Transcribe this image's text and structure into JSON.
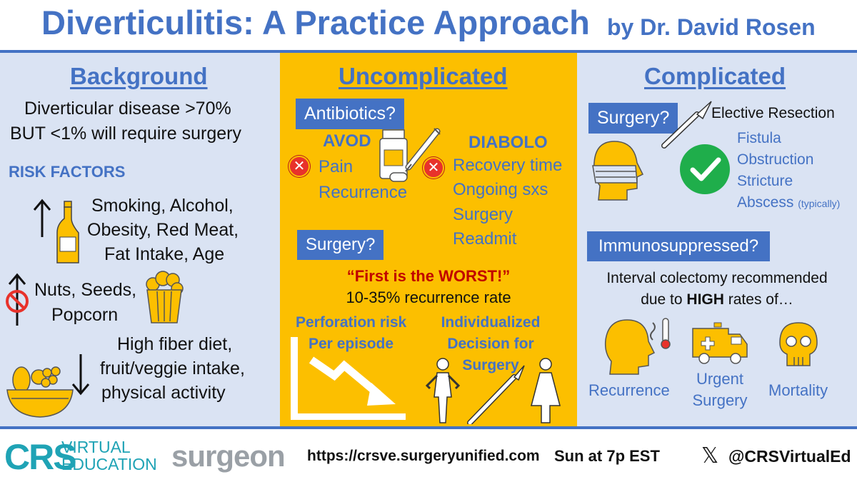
{
  "header": {
    "title": "Diverticulitis: A Practice Approach",
    "byline": "by Dr. David Rosen"
  },
  "background": {
    "heading": "Background",
    "stat_line1": "Diverticular disease >70%",
    "stat_line2": "BUT <1% will require surgery",
    "risk_title": "RISK FACTORS",
    "increase_lines": [
      "Smoking, Alcohol,",
      "Obesity, Red Meat,",
      "Fat Intake, Age"
    ],
    "myth_lines": [
      "Nuts, Seeds,",
      "Popcorn"
    ],
    "decrease_lines": [
      "High fiber diet,",
      "fruit/veggie intake,",
      "physical activity"
    ]
  },
  "uncomplicated": {
    "heading": "Uncomplicated",
    "antibiotics_label": "Antibiotics?",
    "avod_title": "AVOD",
    "avod_items": [
      "Pain",
      "Recurrence"
    ],
    "diabolo_title": "DIABOLO",
    "diabolo_items": [
      "Recovery time",
      "Ongoing sxs",
      "Surgery",
      "Readmit"
    ],
    "surgery_label": "Surgery?",
    "quote": "“First is the WORST!”",
    "recurrence_rate": "10-35% recurrence rate",
    "perforation_lines": [
      "Perforation risk",
      "Per episode"
    ],
    "decision_lines": [
      "Individualized",
      "Decision for",
      "Surgery"
    ]
  },
  "complicated": {
    "heading": "Complicated",
    "surgery_label": "Surgery?",
    "elective": "Elective Resection",
    "indications": [
      "Fistula",
      "Obstruction",
      "Stricture",
      "Abscess"
    ],
    "abscess_note": "(typically)",
    "immuno_label": "Immunosuppressed?",
    "interval_line1": "Interval colectomy recommended",
    "interval_pre": "due to ",
    "interval_bold": "HIGH",
    "interval_post": " rates of…",
    "outcomes": [
      "Recurrence",
      "Urgent",
      "Surgery",
      "Mortality"
    ]
  },
  "footer": {
    "crs_logo": "CRS",
    "crs_text1": "VIRTUAL",
    "crs_text2": "EDUCATION",
    "surgeon_logo": "surgeon",
    "url": "https://crsve.surgeryunified.com",
    "schedule": "Sun at 7p EST",
    "x_logo": "𝕏",
    "handle": "@CRSVirtualEd"
  },
  "colors": {
    "blue": "#4472c4",
    "gold": "#fcbf00",
    "light_blue": "#dae3f3",
    "red": "#e8322b",
    "green": "#1fae4b",
    "teal": "#1fa3b5"
  }
}
